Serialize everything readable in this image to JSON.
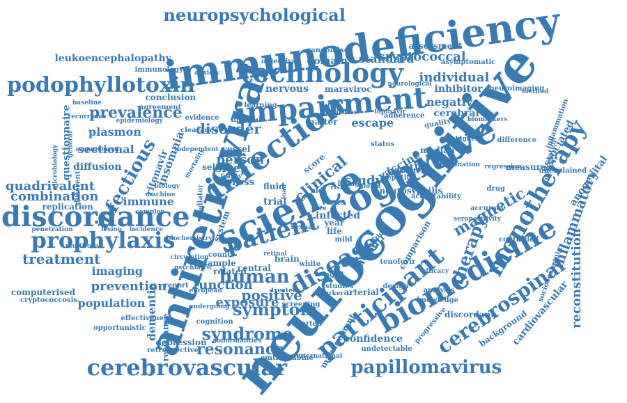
{
  "colors": {
    "word": "#3a7ab3",
    "background": "#ffffff"
  },
  "words": [
    "neurocognitive",
    "antiretroviral",
    "immunodeficiency",
    "science",
    "cognitive",
    "infection",
    "impairment",
    "technology",
    "biomedicine",
    "participant",
    "patient",
    "disease",
    "discordance",
    "cerebrovascular",
    "podophyllotoxin",
    "neuropsychological",
    "prophylaxis",
    "monotherapy",
    "cerebrospinal",
    "papillomavirus",
    "human",
    "symptom",
    "syndrome",
    "resonance",
    "prevalence",
    "infectious",
    "clinical",
    "therapy",
    "magnetic",
    "inflammatory",
    "reconstitution",
    "quadrivalent",
    "combination",
    "leukoencephalopathy",
    "cryptococcal",
    "individual",
    "treatment",
    "positive",
    "prevention",
    "population",
    "imaging",
    "exposure",
    "function",
    "plasmon",
    "sectional",
    "diffusion",
    "questionnaire",
    "dementia",
    "immune",
    "associated",
    "cardiovascular",
    "anogenital",
    "vaccine",
    "health",
    "study",
    "person",
    "disorder",
    "escape",
    "negative",
    "inhibitor",
    "standard",
    "domain",
    "nervous",
    "maraviroc",
    "assessment",
    "confidence",
    "sleep",
    "cross",
    "insomnia",
    "ritonavir",
    "conclusion",
    "agreement",
    "immunology",
    "quality",
    "measure",
    "accuracy",
    "central",
    "brain",
    "white",
    "related",
    "sample",
    "count",
    "arterial",
    "trial",
    "computerised",
    "cryptococcosis",
    "effectiveness",
    "opportunistic",
    "resistance",
    "depression",
    "retrospective",
    "abnormalities",
    "emtricitabine",
    "international",
    "undetectable",
    "management",
    "screening",
    "reported",
    "cognition",
    "analysis",
    "knowledge",
    "discordant",
    "progressive",
    "background",
    "socioeconomic",
    "correlation",
    "inflammation",
    "difference",
    "neuroimaging",
    "biomarkers",
    "median",
    "cerebral",
    "controlled",
    "unexplained",
    "replication",
    "matter",
    "interval",
    "learning",
    "objective",
    "randomised",
    "asymptomatic",
    "neurological",
    "comparison",
    "tenofovir",
    "design",
    "infected",
    "year",
    "life",
    "fluid",
    "self",
    "vessel",
    "system",
    "score",
    "virus",
    "control",
    "factor",
    "aged",
    "studies",
    "report",
    "anxiety",
    "association",
    "acceptability",
    "neurosyphilis",
    "retinal",
    "drug",
    "lesion",
    "incidence",
    "penetration",
    "multifocal",
    "biochemistry",
    "undergoing",
    "european",
    "psychiatric",
    "circulation",
    "biology",
    "machine",
    "complex",
    "mediator",
    "different",
    "general",
    "recurrence",
    "baseline",
    "epidemiology",
    "microbiology",
    "engagement",
    "independent",
    "mortality",
    "clearance",
    "evidence",
    "activities",
    "lopinavir",
    "adherence",
    "regression",
    "method",
    "vaccination",
    "seropositivity",
    "efficacy",
    "treated",
    "marker",
    "hepatitis",
    "higher",
    "frailty",
    "sexual",
    "living",
    "status",
    "battery",
    "mild",
    "aid",
    "risk",
    "care",
    "load",
    "global",
    "level",
    "scale",
    "time",
    "label"
  ]
}
